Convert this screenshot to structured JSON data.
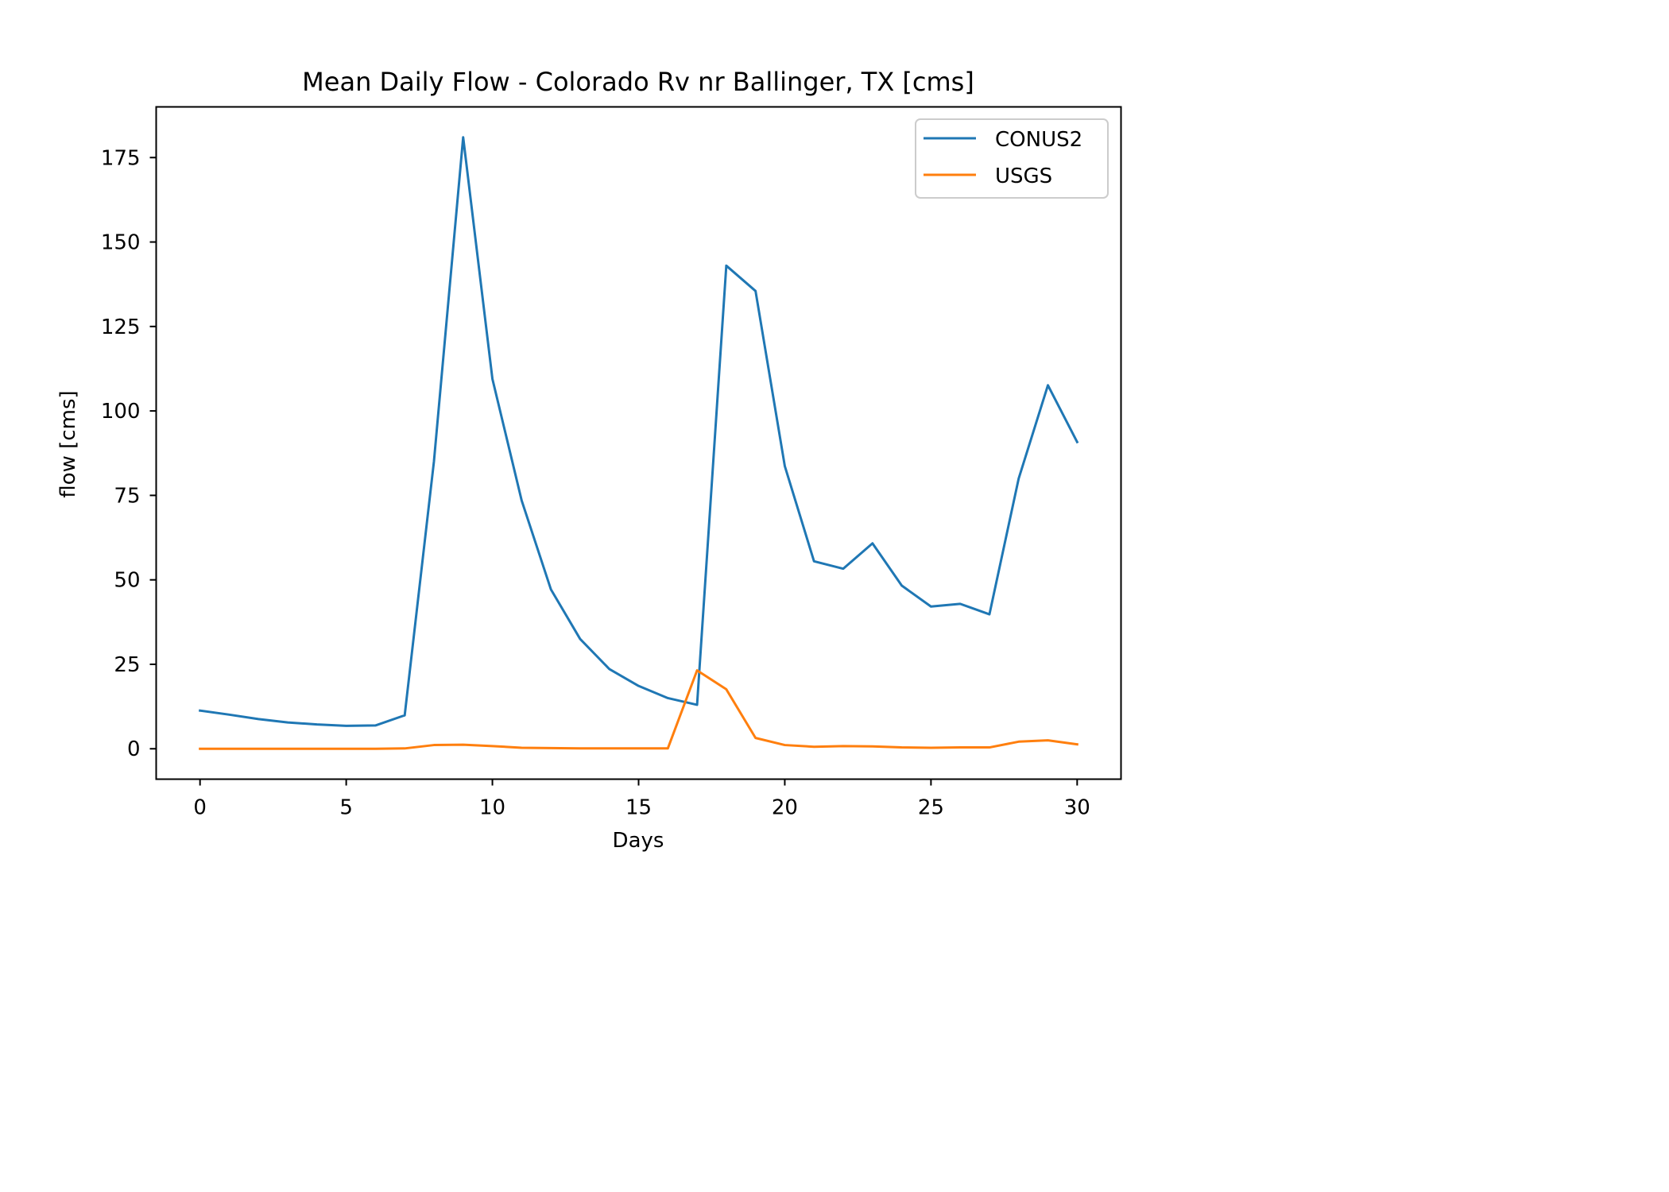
{
  "chart_data": {
    "type": "line",
    "title": "Mean Daily Flow - Colorado Rv nr Ballinger, TX [cms]",
    "xlabel": "Days",
    "ylabel": "flow [cms]",
    "xlim": [
      -1.5,
      31.5
    ],
    "ylim": [
      -9,
      190
    ],
    "xticks": [
      0,
      5,
      10,
      15,
      20,
      25,
      30
    ],
    "yticks": [
      0,
      25,
      50,
      75,
      100,
      125,
      150,
      175
    ],
    "grid": false,
    "legend": "top-right",
    "x": [
      0,
      1,
      2,
      3,
      4,
      5,
      6,
      7,
      8,
      9,
      10,
      11,
      12,
      13,
      14,
      15,
      16,
      17,
      18,
      19,
      20,
      21,
      22,
      23,
      24,
      25,
      26,
      27,
      28,
      29,
      30
    ],
    "series": [
      {
        "name": "CONUS2",
        "color": "#1f77b4",
        "values": [
          11.3,
          10.1,
          8.8,
          7.8,
          7.2,
          6.8,
          6.9,
          9.9,
          85,
          181,
          109.5,
          73.5,
          47.2,
          32.5,
          23.6,
          18.6,
          15,
          13,
          143,
          135.5,
          83.7,
          55.5,
          53.3,
          60.8,
          48.3,
          42.1,
          42.9,
          39.8,
          80,
          107.6,
          90.8
        ]
      },
      {
        "name": "USGS",
        "color": "#ff7f0e",
        "values": [
          0,
          0,
          0,
          0,
          0,
          0,
          0,
          0.1,
          1.1,
          1.2,
          0.8,
          0.3,
          0.2,
          0.1,
          0.1,
          0.1,
          0.1,
          23.2,
          17.6,
          3.2,
          1.1,
          0.6,
          0.8,
          0.7,
          0.4,
          0.3,
          0.4,
          0.4,
          2.1,
          2.5,
          1.3
        ]
      }
    ]
  }
}
